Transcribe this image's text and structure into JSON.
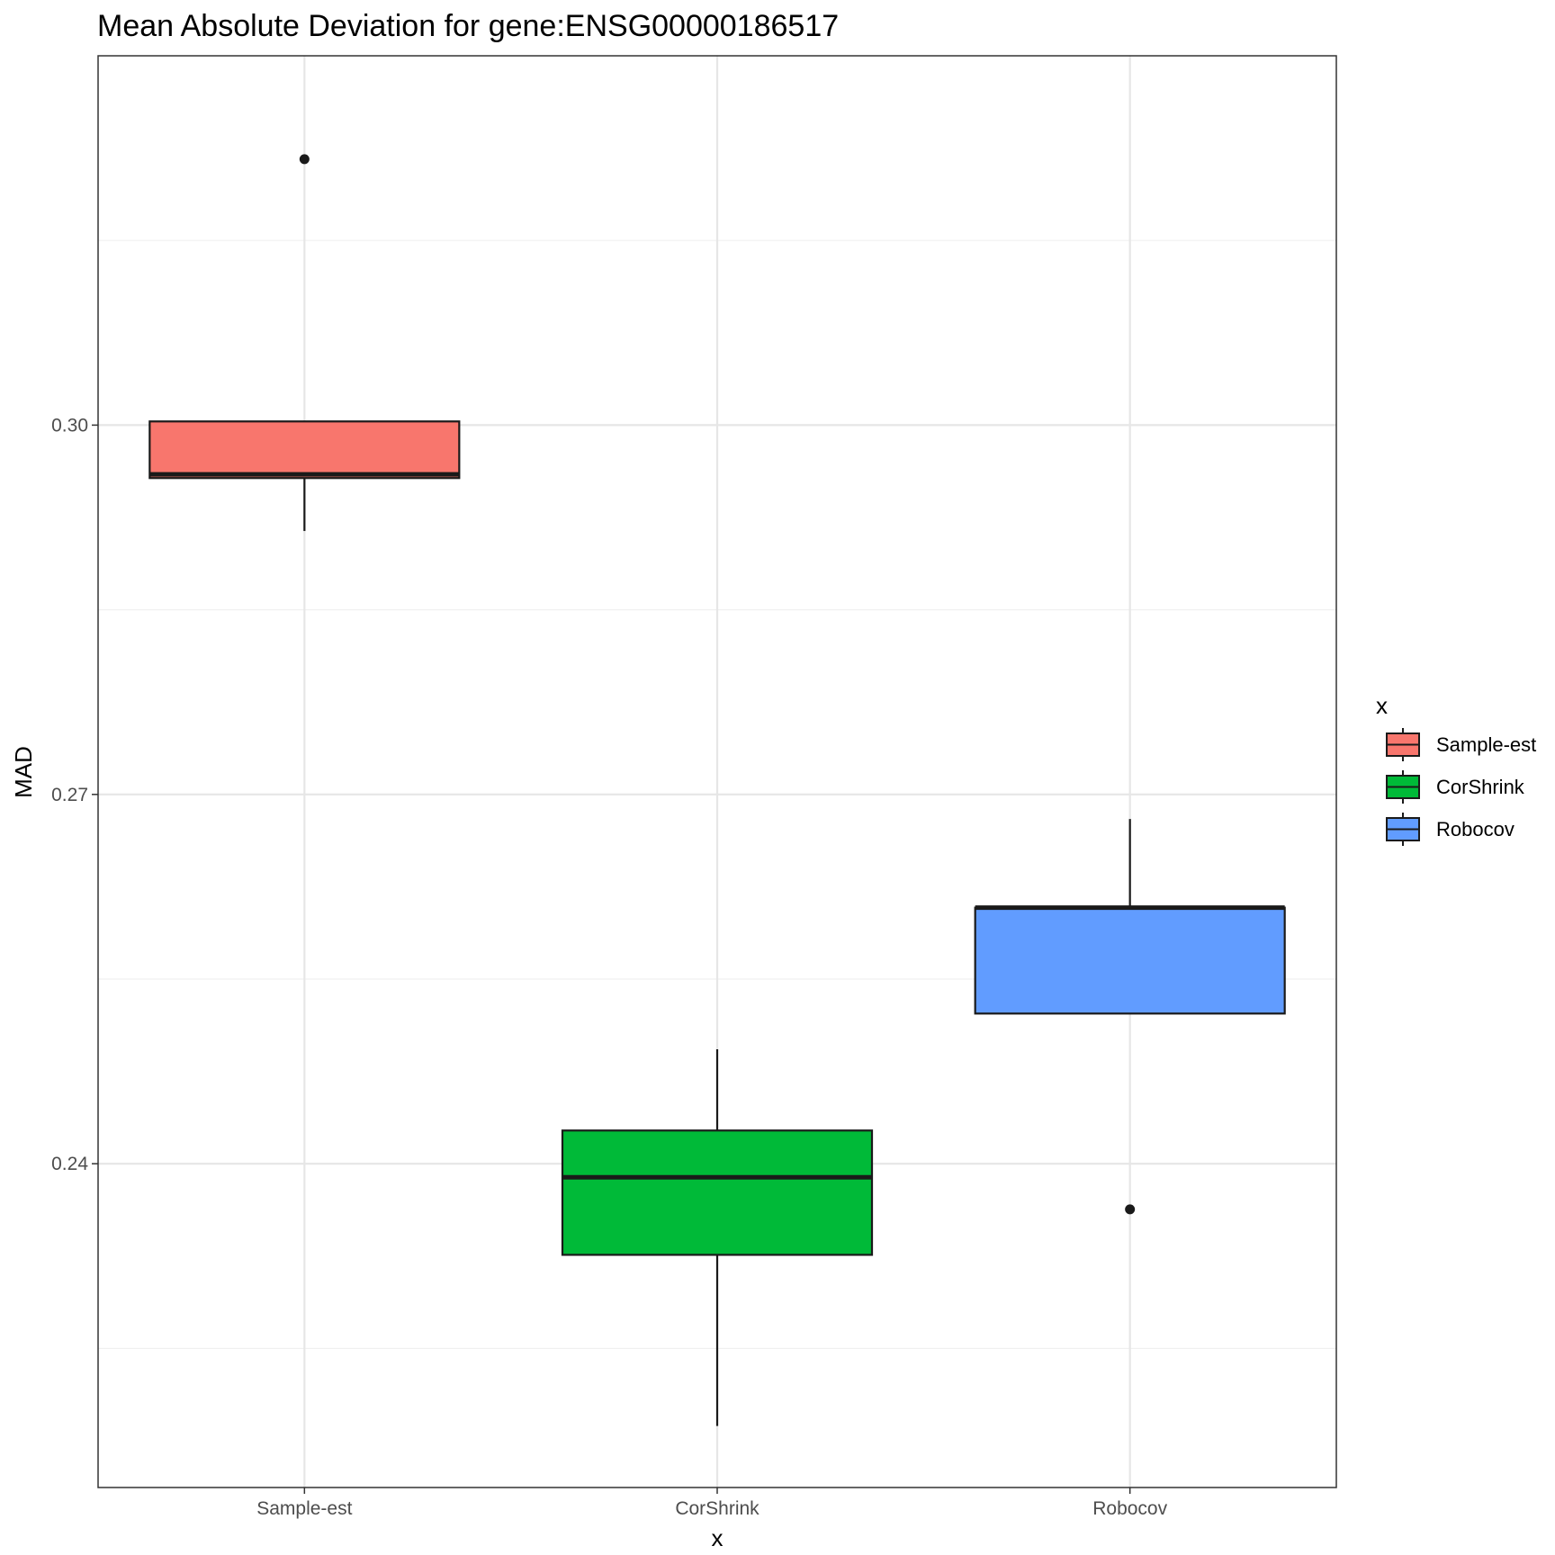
{
  "chart_data": {
    "type": "boxplot",
    "title": "Mean Absolute Deviation for gene:ENSG00000186517",
    "xlabel": "x",
    "ylabel": "MAD",
    "ylim": [
      0.2137,
      0.33
    ],
    "yticks": [
      0.24,
      0.27,
      0.3
    ],
    "ytick_labels": [
      "0.24",
      "0.27",
      "0.30"
    ],
    "grid": true,
    "legend": {
      "title": "x",
      "placement": "right"
    },
    "categories": [
      "Sample-est",
      "CorShrink",
      "Robocov"
    ],
    "series": [
      {
        "name": "Sample-est",
        "color": "#F8766D",
        "lower_whisker": 0.2914,
        "q1": 0.2957,
        "median": 0.296,
        "q3": 0.3003,
        "upper_whisker": 0.3003,
        "outliers": [
          0.3216
        ]
      },
      {
        "name": "CorShrink",
        "color": "#00BA38",
        "lower_whisker": 0.2187,
        "q1": 0.2326,
        "median": 0.2389,
        "q3": 0.2427,
        "upper_whisker": 0.2493,
        "outliers": []
      },
      {
        "name": "Robocov",
        "color": "#619CFF",
        "lower_whisker": 0.2522,
        "q1": 0.2522,
        "median": 0.2608,
        "q3": 0.2608,
        "upper_whisker": 0.268,
        "outliers": [
          0.2363
        ]
      }
    ]
  }
}
